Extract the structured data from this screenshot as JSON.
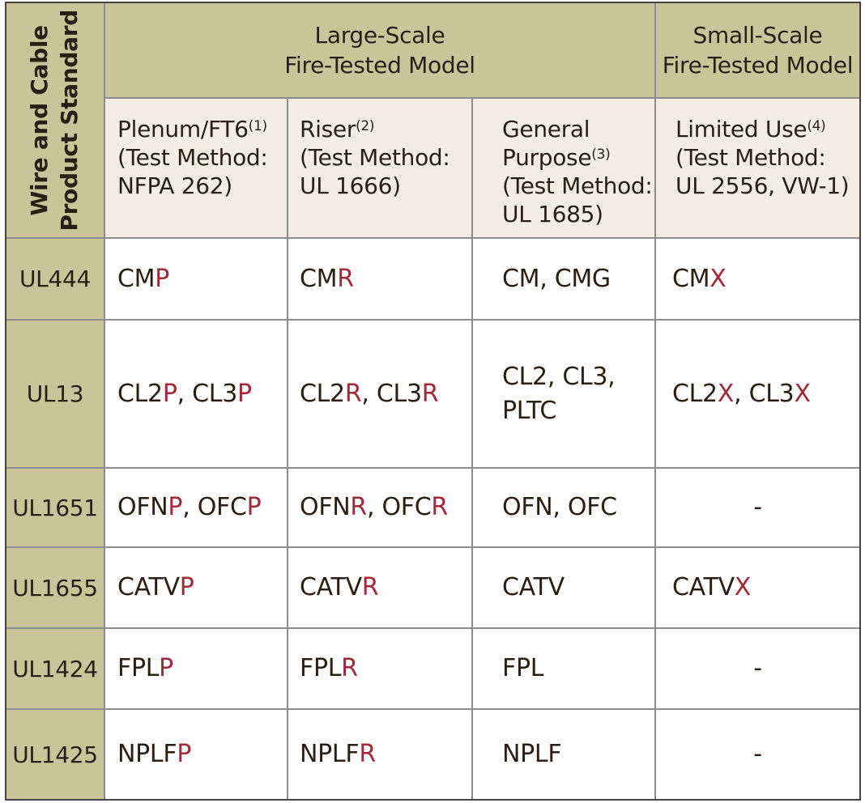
{
  "corner_header": {
    "line1": "Wire and Cable",
    "line2": "Product Standard"
  },
  "group_headers": [
    {
      "label": "Large-Scale\nFire-Tested Model"
    },
    {
      "label": "Small-Scale\nFire-Tested Model"
    }
  ],
  "column_headers": [
    {
      "title": "Plenum/FT6",
      "sup": "(1)",
      "method": "(Test Method:\nNFPA 262)"
    },
    {
      "title": "Riser",
      "sup": "(2)",
      "method": "(Test Method:\nUL 1666)"
    },
    {
      "title": "General\nPurpose",
      "sup": "(3)",
      "method": "(Test Method:\nUL 1685)"
    },
    {
      "title": "Limited Use",
      "sup": "(4)",
      "method": "(Test Method:\nUL 2556, VW-1)"
    }
  ],
  "rows": [
    {
      "standard": "UL444",
      "cells": [
        [
          {
            "t": "CM"
          },
          {
            "t": "P",
            "accent": true
          }
        ],
        [
          {
            "t": "CM"
          },
          {
            "t": "R",
            "accent": true
          }
        ],
        [
          {
            "t": "CM, CMG"
          }
        ],
        [
          {
            "t": "CM"
          },
          {
            "t": "X",
            "accent": true
          }
        ]
      ]
    },
    {
      "standard": "UL13",
      "cells": [
        [
          {
            "t": "CL2"
          },
          {
            "t": "P",
            "accent": true
          },
          {
            "t": ", CL3"
          },
          {
            "t": "P",
            "accent": true
          }
        ],
        [
          {
            "t": "CL2"
          },
          {
            "t": "R",
            "accent": true
          },
          {
            "t": ", CL3"
          },
          {
            "t": "R",
            "accent": true
          }
        ],
        [
          {
            "t": "CL2, CL3,\nPLTC"
          }
        ],
        [
          {
            "t": "CL2"
          },
          {
            "t": "X",
            "accent": true
          },
          {
            "t": ", CL3"
          },
          {
            "t": "X",
            "accent": true
          }
        ]
      ]
    },
    {
      "standard": "UL1651",
      "cells": [
        [
          {
            "t": "OFN"
          },
          {
            "t": "P",
            "accent": true
          },
          {
            "t": ", OFC"
          },
          {
            "t": "P",
            "accent": true
          }
        ],
        [
          {
            "t": "OFN"
          },
          {
            "t": "R",
            "accent": true
          },
          {
            "t": ", OFC"
          },
          {
            "t": "R",
            "accent": true
          }
        ],
        [
          {
            "t": "OFN, OFC"
          }
        ],
        [
          {
            "t": "-"
          }
        ]
      ]
    },
    {
      "standard": "UL1655",
      "cells": [
        [
          {
            "t": "CATV"
          },
          {
            "t": "P",
            "accent": true
          }
        ],
        [
          {
            "t": "CATV"
          },
          {
            "t": "R",
            "accent": true
          }
        ],
        [
          {
            "t": "CATV"
          }
        ],
        [
          {
            "t": "CATV"
          },
          {
            "t": "X",
            "accent": true
          }
        ]
      ]
    },
    {
      "standard": "UL1424",
      "cells": [
        [
          {
            "t": "FPL"
          },
          {
            "t": "P",
            "accent": true
          }
        ],
        [
          {
            "t": "FPL"
          },
          {
            "t": "R",
            "accent": true
          }
        ],
        [
          {
            "t": "FPL"
          }
        ],
        [
          {
            "t": "-"
          }
        ]
      ]
    },
    {
      "standard": "UL1425",
      "cells": [
        [
          {
            "t": "NPLF"
          },
          {
            "t": "P",
            "accent": true
          }
        ],
        [
          {
            "t": "NPLF"
          },
          {
            "t": "R",
            "accent": true
          }
        ],
        [
          {
            "t": "NPLF"
          }
        ],
        [
          {
            "t": "-"
          }
        ]
      ]
    }
  ],
  "colors": {
    "accent_red": "#a02a3a",
    "header_olive": "#c9c49a",
    "subheader_cream": "#f3ede3",
    "cell_white": "#fefefe",
    "text_dark": "#2a1f15",
    "grid_line": "#8d8d8d",
    "outer_border": "#454545"
  }
}
